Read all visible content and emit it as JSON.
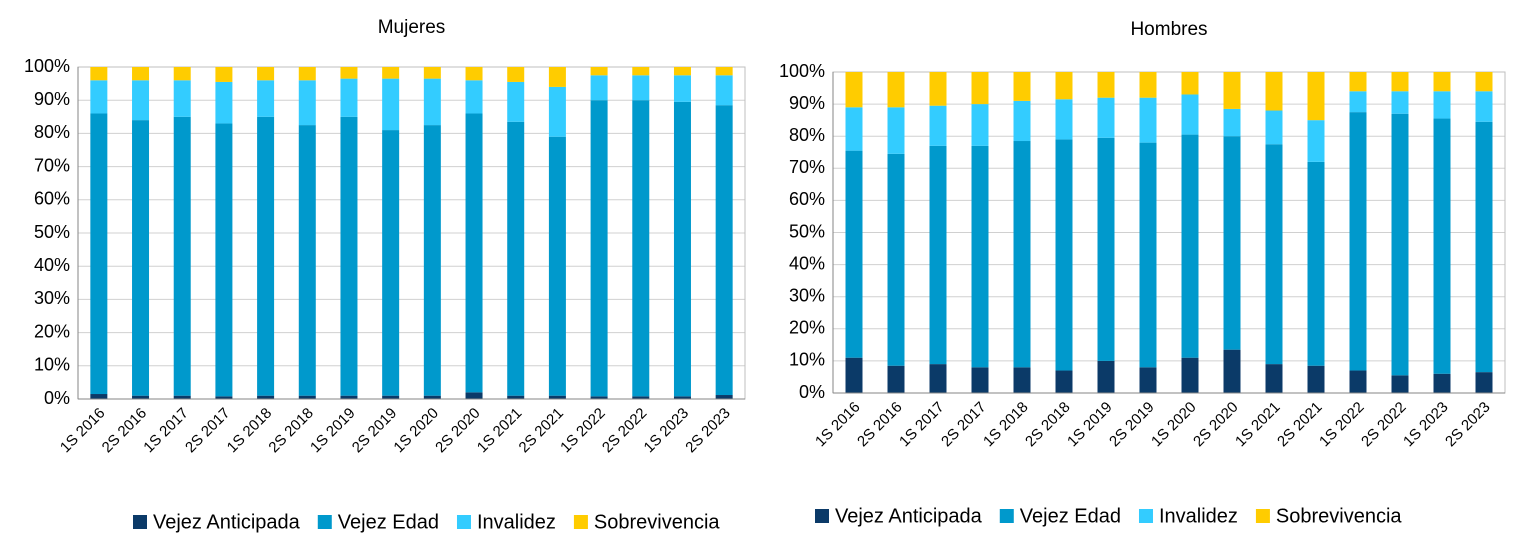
{
  "chart_data": [
    {
      "type": "stacked_bar",
      "title": "Mujeres",
      "categories": [
        "1S 2016",
        "2S 2016",
        "1S 2017",
        "2S 2017",
        "1S 2018",
        "2S 2018",
        "1S 2019",
        "2S 2019",
        "1S 2020",
        "2S 2020",
        "1S 2021",
        "2S 2021",
        "1S 2022",
        "2S 2022",
        "1S 2023",
        "2S 2023"
      ],
      "series": [
        {
          "name": "Vejez Anticipada",
          "color": "#0b3a68",
          "values": [
            1.5,
            1,
            1,
            0.8,
            1,
            1,
            1,
            1,
            1,
            2,
            1,
            1,
            0.8,
            0.8,
            0.8,
            1.2
          ]
        },
        {
          "name": "Vejez Edad",
          "color": "#0099cc",
          "values": [
            84.5,
            83,
            84,
            82.2,
            84,
            81.5,
            84,
            80,
            81.5,
            84,
            82.5,
            78,
            89.2,
            89.2,
            88.7,
            87.3
          ]
        },
        {
          "name": "Invalidez",
          "color": "#33ccff",
          "values": [
            10,
            12,
            11,
            12.5,
            11,
            13.5,
            11.5,
            15.5,
            14,
            10,
            12,
            15,
            7.5,
            7.5,
            8,
            9
          ]
        },
        {
          "name": "Sobrevivencia",
          "color": "#ffcc00",
          "values": [
            4,
            4,
            4,
            4.5,
            4,
            4,
            3.5,
            3.5,
            3.5,
            4,
            4.5,
            6,
            2.5,
            2.5,
            2.5,
            2.5
          ]
        }
      ],
      "ylim": [
        0,
        100
      ],
      "yticks": [
        {
          "value": 0,
          "label": "0%"
        },
        {
          "value": 10,
          "label": "10%"
        },
        {
          "value": 20,
          "label": "20%"
        },
        {
          "value": 30,
          "label": "30%"
        },
        {
          "value": 40,
          "label": "40%"
        },
        {
          "value": 50,
          "label": "50%"
        },
        {
          "value": 60,
          "label": "60%"
        },
        {
          "value": 70,
          "label": "70%"
        },
        {
          "value": 80,
          "label": "80%"
        },
        {
          "value": 90,
          "label": "90%"
        },
        {
          "value": 100,
          "label": "100%"
        }
      ],
      "grid": true,
      "legend": "bottom"
    },
    {
      "type": "stacked_bar",
      "title": "Hombres",
      "categories": [
        "1S 2016",
        "2S 2016",
        "1S 2017",
        "2S 2017",
        "1S 2018",
        "2S 2018",
        "1S 2019",
        "2S 2019",
        "1S 2020",
        "2S 2020",
        "1S 2021",
        "2S 2021",
        "1S 2022",
        "2S 2022",
        "1S 2023",
        "2S 2023"
      ],
      "series": [
        {
          "name": "Vejez Anticipada",
          "color": "#0b3a68",
          "values": [
            11,
            8.5,
            9,
            8,
            8,
            7,
            10,
            8,
            11,
            13.5,
            9,
            8.5,
            7,
            5.5,
            6,
            6.5
          ]
        },
        {
          "name": "Vejez Edad",
          "color": "#0099cc",
          "values": [
            64.5,
            66,
            68,
            69,
            70.5,
            72,
            69.5,
            70,
            69.5,
            66.5,
            68.5,
            63.5,
            80.5,
            81.5,
            79.5,
            78
          ]
        },
        {
          "name": "Invalidez",
          "color": "#33ccff",
          "values": [
            13.5,
            14.5,
            12.5,
            13,
            12.5,
            12.5,
            12.5,
            14,
            12.5,
            8.5,
            10.5,
            13,
            6.5,
            7,
            8.5,
            9.5
          ]
        },
        {
          "name": "Sobrevivencia",
          "color": "#ffcc00",
          "values": [
            11,
            11,
            10.5,
            10,
            9,
            8.5,
            8,
            8,
            7,
            11.5,
            12,
            15,
            6,
            6,
            6,
            6
          ]
        }
      ],
      "ylim": [
        0,
        100
      ],
      "yticks": [
        {
          "value": 0,
          "label": "0%"
        },
        {
          "value": 10,
          "label": "10%"
        },
        {
          "value": 20,
          "label": "20%"
        },
        {
          "value": 30,
          "label": "30%"
        },
        {
          "value": 40,
          "label": "40%"
        },
        {
          "value": 50,
          "label": "50%"
        },
        {
          "value": 60,
          "label": "60%"
        },
        {
          "value": 70,
          "label": "70%"
        },
        {
          "value": 80,
          "label": "80%"
        },
        {
          "value": 90,
          "label": "90%"
        },
        {
          "value": 100,
          "label": "100%"
        }
      ],
      "grid": true,
      "legend": "bottom"
    }
  ]
}
